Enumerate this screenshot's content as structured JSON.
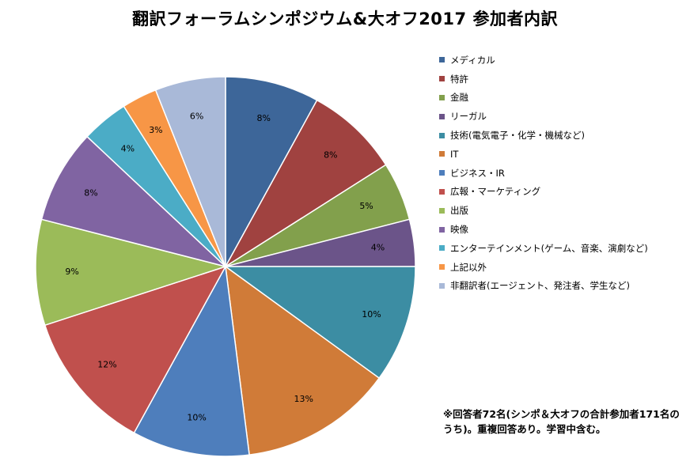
{
  "chart_data": {
    "type": "pie",
    "title": "翻訳フォーラムシンポジウム&大オフ2017 参加者内訳",
    "legend_position": "right",
    "categories": [
      "メディカル",
      "特許",
      "金融",
      "リーガル",
      "技術(電気電子・化学・機械など)",
      "IT",
      "ビジネス・IR",
      "広報・マーケティング",
      "出版",
      "映像",
      "エンターテインメント(ゲーム、音楽、演劇など)",
      "上記以外",
      "非翻訳者(エージェント、発注者、学生など)"
    ],
    "values": [
      8,
      8,
      5,
      4,
      10,
      13,
      10,
      12,
      9,
      8,
      4,
      3,
      6
    ],
    "labels": [
      "8%",
      "8%",
      "5%",
      "4%",
      "10%",
      "13%",
      "10%",
      "12%",
      "9%",
      "8%",
      "4%",
      "3%",
      "6%"
    ],
    "colors": [
      "#3D6699",
      "#A04240",
      "#82A04C",
      "#6B5489",
      "#3C8DA3",
      "#D07B38",
      "#4E7EBC",
      "#C0504D",
      "#9BBB59",
      "#8064A2",
      "#4BACC6",
      "#F79646",
      "#A9B9D8"
    ]
  },
  "note": "※回答者72名(シンポ＆大オフの合計参加者171名のうち)。重複回答あり。学習中含む。"
}
